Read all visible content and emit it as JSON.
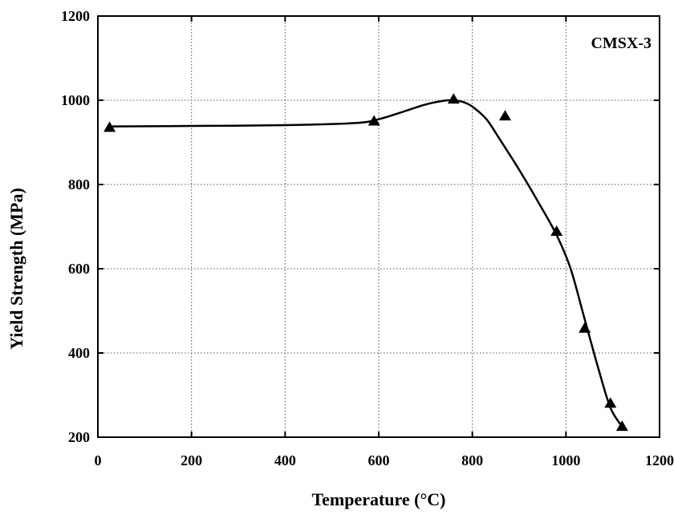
{
  "chart_data": {
    "type": "line",
    "title": "",
    "annotation": "CMSX-3",
    "xlabel": "Temperature (°C)",
    "ylabel": "Yield Strength (MPa)",
    "xlim": [
      0,
      1200
    ],
    "ylim": [
      200,
      1200
    ],
    "x_ticks": [
      "0",
      "200",
      "400",
      "600",
      "800",
      "1000",
      "1200"
    ],
    "y_ticks": [
      "200",
      "400",
      "600",
      "800",
      "1000",
      "1200"
    ],
    "grid": true,
    "legend": "none",
    "marker": "triangle",
    "series": [
      {
        "x": [
          25,
          590,
          760,
          870,
          980,
          1040,
          1095,
          1120
        ],
        "y": [
          935,
          950,
          1002,
          962,
          688,
          458,
          280,
          225
        ]
      }
    ],
    "fit_curve": {
      "x": [
        25,
        200,
        400,
        550,
        600,
        650,
        700,
        740,
        760,
        780,
        800,
        830,
        860,
        900,
        940,
        980,
        1010,
        1040,
        1070,
        1095,
        1120
      ],
      "y": [
        938,
        939,
        941,
        946,
        955,
        972,
        990,
        999,
        1000,
        996,
        985,
        955,
        905,
        835,
        760,
        680,
        600,
        480,
        360,
        270,
        225
      ]
    }
  }
}
